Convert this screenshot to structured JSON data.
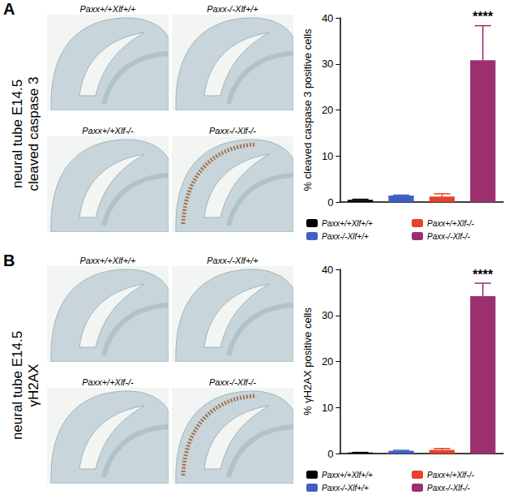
{
  "chart_data": [
    {
      "type": "bar",
      "panel_label": "A",
      "side_label": [
        "neural tube E14.5",
        "cleaved caspase 3"
      ],
      "image_labels": [
        "Paxx+/+Xlf+/+",
        "Paxx-/-Xlf+/+",
        "Paxx+/+Xlf-/-",
        "Paxx-/-Xlf-/-"
      ],
      "y_label": "% cleaved caspase 3 positive cells",
      "categories": [
        "Paxx+/+Xlf+/+",
        "Paxx-/-Xlf+/+",
        "Paxx+/+Xlf-/-",
        "Paxx-/-Xlf-/-"
      ],
      "values": [
        0.5,
        1.4,
        1.2,
        30.8
      ],
      "errors": [
        0.1,
        0.1,
        0.6,
        7.5
      ],
      "colors": [
        "#000000",
        "#3f5fc4",
        "#e8412c",
        "#9c2f6f"
      ],
      "annotations": [
        {
          "text": "****",
          "category": "Paxx-/-Xlf-/-"
        }
      ],
      "ylim": [
        0,
        40
      ],
      "yticks": [
        0,
        10,
        20,
        30,
        40
      ],
      "grid": false,
      "legend": "bottom",
      "tick_labels": "y"
    },
    {
      "type": "bar",
      "panel_label": "B",
      "side_label": [
        "neural tube E14.5",
        "γH2AX"
      ],
      "image_labels": [
        "Paxx+/+Xlf+/+",
        "Paxx-/-Xlf+/+",
        "Paxx+/+Xlf-/-",
        "Paxx-/-Xlf-/-"
      ],
      "y_label": "% γH2AX positive cells",
      "categories": [
        "Paxx+/+Xlf+/+",
        "Paxx-/-Xlf+/+",
        "Paxx+/+Xlf-/-",
        "Paxx-/-Xlf-/-"
      ],
      "values": [
        0.2,
        0.6,
        0.8,
        34.2
      ],
      "errors": [
        0.05,
        0.1,
        0.3,
        2.8
      ],
      "colors": [
        "#000000",
        "#3f5fc4",
        "#e8412c",
        "#9c2f6f"
      ],
      "annotations": [
        {
          "text": "****",
          "category": "Paxx-/-Xlf-/-"
        }
      ],
      "ylim": [
        0,
        40
      ],
      "yticks": [
        0,
        10,
        20,
        30,
        40
      ],
      "grid": false,
      "legend": "bottom",
      "tick_labels": "y"
    }
  ]
}
